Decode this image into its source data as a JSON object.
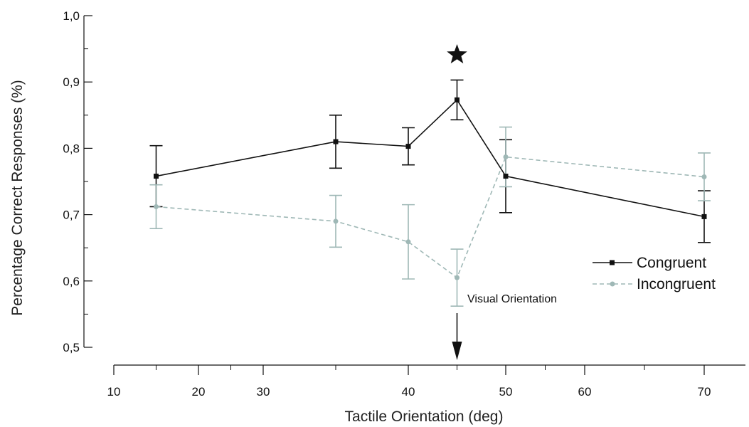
{
  "chart_data": {
    "type": "line",
    "title": "",
    "xlabel": "Tactile Orientation (deg)",
    "ylabel": "Percentage Correct Responses (%)",
    "x_ticks": [
      10,
      20,
      30,
      40,
      50,
      60,
      70
    ],
    "x_tick_labels": [
      "10",
      "20",
      "30",
      "40",
      "50",
      "60",
      "70"
    ],
    "y_ticks": [
      0.5,
      0.6,
      0.7,
      0.8,
      0.9,
      1.0
    ],
    "y_tick_labels": [
      "0,5",
      "0,6",
      "0,7",
      "0,8",
      "0,9",
      "1,0"
    ],
    "x_axis_note": "non-linear axis: 30–50 expanded (ticks at 10,20,30,40,50,60,70; data at 15,35,40,45,50,70)",
    "ylim": [
      0.5,
      1.0
    ],
    "grid": false,
    "legend_position": "right",
    "series": [
      {
        "name": "Congruent",
        "color": "#111111",
        "marker": "square",
        "line_style": "solid",
        "x": [
          15,
          35,
          40,
          45,
          50,
          70
        ],
        "y": [
          0.758,
          0.81,
          0.803,
          0.873,
          0.758,
          0.697
        ],
        "error": [
          0.046,
          0.04,
          0.028,
          0.03,
          0.055,
          0.039
        ]
      },
      {
        "name": "Incongruent",
        "color": "#9fb8b6",
        "marker": "circle",
        "line_style": "dashed",
        "x": [
          15,
          35,
          40,
          45,
          50,
          70
        ],
        "y": [
          0.712,
          0.69,
          0.659,
          0.605,
          0.787,
          0.757
        ],
        "error": [
          0.033,
          0.039,
          0.056,
          0.043,
          0.045,
          0.036
        ]
      }
    ],
    "annotations": [
      {
        "text": "Visual Orientation",
        "x": 45,
        "arrow": "down",
        "icon": "arrow-down-icon"
      },
      {
        "text": "",
        "x": 45,
        "icon": "star-icon",
        "meaning": "significance marker"
      }
    ]
  }
}
